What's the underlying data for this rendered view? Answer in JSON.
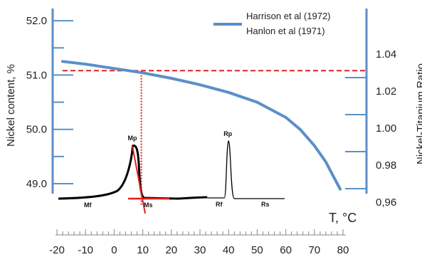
{
  "chart_data": {
    "type": "line",
    "x_axis": {
      "label": "T, °C",
      "range": [
        -20,
        80
      ],
      "ticks": [
        -20,
        -10,
        0,
        10,
        20,
        30,
        40,
        50,
        60,
        70,
        80
      ],
      "tick_labels": [
        "-20",
        "-10",
        "0",
        "10",
        "20",
        "30",
        "40",
        "50",
        "60",
        "70",
        "80"
      ]
    },
    "y_axis_left": {
      "label": "Nickel content, %",
      "range": [
        48.7,
        52.2
      ],
      "ticks": [
        49.0,
        50.0,
        51.0,
        52.0
      ],
      "tick_labels": [
        "49.0",
        "50.0",
        "51.0",
        "52.0"
      ]
    },
    "y_axis_right": {
      "label": "Nickel-Titanium Ratio",
      "ticks": [
        0.96,
        0.98,
        1.0,
        1.02,
        1.04
      ],
      "tick_labels": [
        "0,96",
        "0.98",
        "1.00",
        "1.02",
        "1.04"
      ]
    },
    "legend": {
      "placement": "top-right",
      "entries": [
        "Harrison et al (1972)",
        "Hanlon et al  (1971)"
      ]
    },
    "series": [
      {
        "name": "Harrison et al (1972)",
        "color": "#5b8fc7",
        "x": [
          -18,
          -10,
          0,
          10,
          20,
          30,
          40,
          50,
          60,
          65,
          70,
          74,
          77,
          79
        ],
        "y": [
          51.25,
          51.2,
          51.12,
          51.04,
          50.94,
          50.82,
          50.68,
          50.5,
          50.22,
          50.0,
          49.7,
          49.4,
          49.1,
          48.9
        ]
      }
    ],
    "reference_lines": {
      "horizontal_nickel": 51.08,
      "vertical_temperature": 10,
      "color": "#e02020"
    },
    "dsc_curve": {
      "cooling_peak_label": "Mp",
      "cooling_marks": [
        "Mf",
        "Ms"
      ],
      "heating_peak_label": "Rp",
      "heating_marks": [
        "Rf",
        "Rs"
      ],
      "cooling_peak_temperature": 7,
      "heating_peak_temperature": 40,
      "cooling_color": "#000000",
      "heating_color": "#000000",
      "tangent_color": "#e02020"
    }
  }
}
